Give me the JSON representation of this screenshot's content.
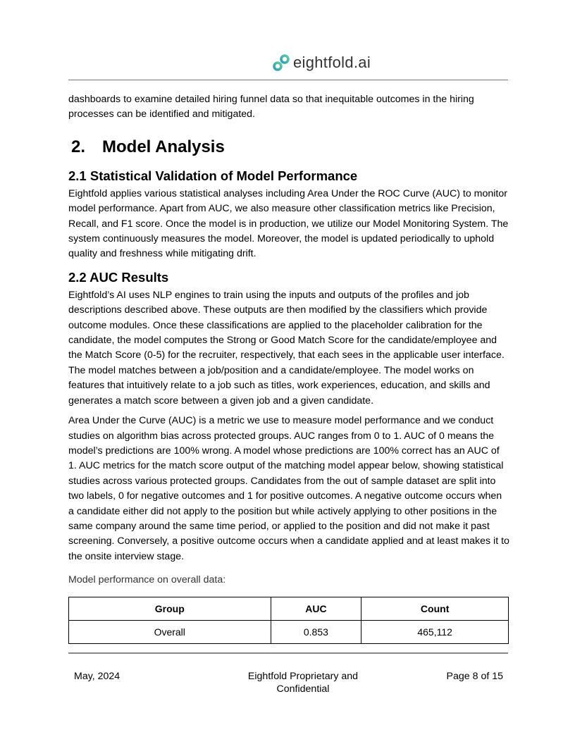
{
  "header": {
    "logo_text": "eightfold.ai",
    "brand_colors": [
      "#2a9bb5",
      "#5ccf9a"
    ]
  },
  "intro_paragraph": "dashboards to examine detailed hiring funnel data so that inequitable outcomes in the hiring processes can be identified and mitigated.",
  "section": {
    "number": "2.",
    "title": "Model Analysis"
  },
  "subsection_1": {
    "title": "2.1 Statistical Validation of Model Performance",
    "body": "Eightfold applies various statistical analyses including Area Under the ROC Curve (AUC) to monitor model performance. Apart from AUC, we also measure other classification metrics like Precision, Recall, and F1 score. Once the model is in production, we utilize our Model Monitoring System. The system continuously measures the model. Moreover, the model is updated periodically to uphold quality and freshness while mitigating drift."
  },
  "subsection_2": {
    "title": "2.2 AUC Results",
    "body_1": "Eightfold’s AI uses NLP engines to train using the inputs and outputs of the profiles and job descriptions described above. These outputs are then modified by the classifiers which provide outcome modules. Once these classifications are applied to the placeholder calibration for the candidate, the model computes the Strong or Good Match Score for the candidate/employee and the Match Score (0-5) for the recruiter, respectively, that each sees in the applicable user interface. The model matches between a job/position and a candidate/employee. The model works on features that intuitively relate to a job such as titles, work experiences, education, and skills and generates a match score between a given job and a given candidate.",
    "body_2": "Area Under the Curve (AUC) is a metric we use to measure model performance and we conduct studies on algorithm bias across protected groups. AUC ranges from 0 to 1. AUC of 0 means the model’s predictions are 100% wrong. A model whose predictions are 100% correct has an AUC of 1.  AUC metrics for the match score output of the matching model appear below, showing statistical studies across various protected groups. Candidates from the out of sample dataset are split into two labels, 0 for negative outcomes and 1 for positive outcomes. A negative outcome occurs when a candidate either did not apply to the position but while actively applying to other positions in the same company around the same time period, or applied to the position and did not make it past screening. Conversely, a positive outcome occurs when a candidate applied and at least makes it to the onsite interview stage.",
    "table_caption": "Model performance on overall data:",
    "table": {
      "headers": [
        "Group",
        "AUC",
        "Count"
      ],
      "rows": [
        [
          "Overall",
          "0.853",
          "465,112"
        ]
      ]
    }
  },
  "footer": {
    "date": "May, 2024",
    "center": "Eightfold Proprietary and Confidential",
    "page": "Page 8 of 15"
  }
}
